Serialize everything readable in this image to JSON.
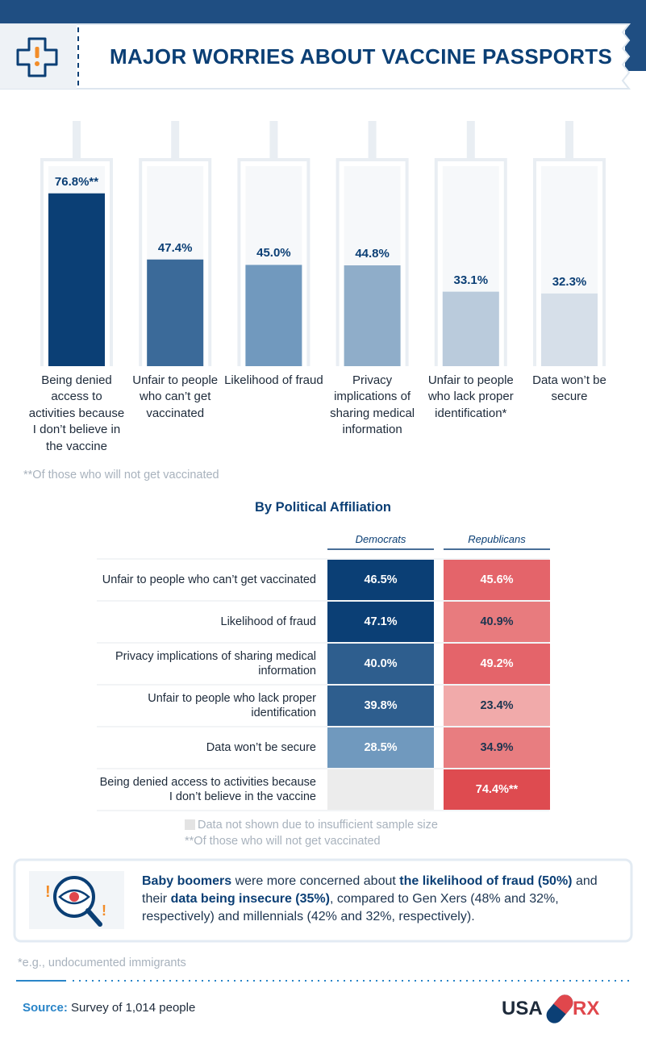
{
  "header": {
    "title": "MAJOR WORRIES ABOUT VACCINE PASSPORTS"
  },
  "chart_data": {
    "type": "bar",
    "categories": [
      "Being denied access to activities because I don’t believe in the vaccine",
      "Unfair to people who can’t get vaccinated",
      "Likelihood of fraud",
      "Privacy implications of sharing medical information",
      "Unfair to people who lack proper identification*",
      "Data won’t be secure"
    ],
    "values": [
      76.8,
      47.4,
      45.0,
      44.8,
      33.1,
      32.3
    ],
    "value_labels": [
      "76.8%**",
      "47.4%",
      "45.0%",
      "44.8%",
      "33.1%",
      "32.3%"
    ],
    "colors": [
      "#0b3f75",
      "#3b6a99",
      "#7199be",
      "#8fadc9",
      "#bacbdc",
      "#d6dfe9"
    ],
    "note": "**Of those who will not get vaccinated"
  },
  "table": {
    "title": "By Political Affiliation",
    "columns": [
      "Democrats",
      "Republicans"
    ],
    "rows": [
      {
        "label": "Unfair to people who can’t get vaccinated",
        "values": [
          "46.5%",
          "45.6%"
        ],
        "colors": [
          "#0b3f75",
          "#e4646a"
        ]
      },
      {
        "label": "Likelihood of fraud",
        "values": [
          "47.1%",
          "40.9%"
        ],
        "colors": [
          "#0b3f75",
          "#e87b7e"
        ]
      },
      {
        "label": "Privacy implications of sharing medical information",
        "values": [
          "40.0%",
          "49.2%"
        ],
        "colors": [
          "#2e5e8e",
          "#e4646a"
        ]
      },
      {
        "label": "Unfair to people who lack proper identification",
        "values": [
          "39.8%",
          "23.4%"
        ],
        "colors": [
          "#2e5e8e",
          "#f1aaaa"
        ]
      },
      {
        "label": "Data won’t be secure",
        "values": [
          "28.5%",
          "34.9%"
        ],
        "colors": [
          "#7099be",
          "#e87d80"
        ]
      },
      {
        "label": "Being denied access to activities because I don’t believe in the vaccine",
        "values": [
          null,
          "74.4%**"
        ],
        "colors": [
          "#ececec",
          "#de4b50"
        ]
      }
    ],
    "notes": [
      "Data not shown due to insufficient sample size",
      "**Of those who will not get vaccinated"
    ]
  },
  "callout": {
    "segments": [
      {
        "text": "Baby boomers",
        "bold": true
      },
      {
        "text": " were more concerned about ",
        "bold": false
      },
      {
        "text": "the likelihood of fraud (50%)",
        "bold": true
      },
      {
        "text": " and their ",
        "bold": false
      },
      {
        "text": "data being insecure (35%)",
        "bold": true
      },
      {
        "text": ", compared to Gen Xers (48% and 32%, respectively) and millennials (42% and 32%, respectively).",
        "bold": false
      }
    ]
  },
  "footnote": "*e.g., undocumented immigrants",
  "source": {
    "label": "Source:",
    "text": " Survey of 1,014 people"
  },
  "logo": {
    "left": "USA",
    "right": "RX"
  }
}
